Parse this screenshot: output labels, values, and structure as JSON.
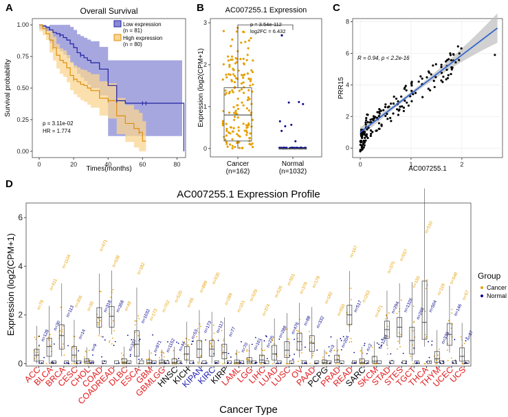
{
  "colors": {
    "cancer": "#E69F00",
    "normal": "#00008B",
    "low": "#1F1FA0",
    "low_band": "#8A8AD6",
    "high": "#E08E0B",
    "high_band": "#F9D592",
    "red_label": "#E31A1C",
    "blue_label": "#1F1FB4",
    "regline": "#3366CC"
  },
  "chart_data": [
    {
      "panel": "A",
      "type": "line",
      "title": "Overall Survival",
      "xlabel": "Times(months)",
      "ylabel": "Survival probability",
      "xlim": [
        -4,
        85
      ],
      "ylim": [
        -0.05,
        1.05
      ],
      "x_ticks": [
        0,
        20,
        40,
        60,
        80
      ],
      "y_ticks": [
        "0.00",
        "0.25",
        "0.50",
        "0.75",
        "1.00"
      ],
      "legend": [
        "Low expression",
        "(n = 81)",
        "High expression",
        "(n = 80)"
      ],
      "annotation": [
        "p = 3.11e-02",
        "HR = 1.774"
      ],
      "series": [
        {
          "name": "Low expression",
          "x": [
            0,
            2,
            4,
            6,
            8,
            10,
            12,
            14,
            16,
            18,
            20,
            22,
            24,
            26,
            28,
            30,
            35,
            40,
            45,
            50,
            55,
            60,
            62,
            83,
            84
          ],
          "y": [
            1.0,
            0.99,
            0.98,
            0.96,
            0.94,
            0.93,
            0.92,
            0.9,
            0.88,
            0.85,
            0.82,
            0.78,
            0.76,
            0.74,
            0.72,
            0.7,
            0.65,
            0.52,
            0.4,
            0.38,
            0.38,
            0.38,
            0.38,
            0.38,
            0.0
          ]
        },
        {
          "name": "High expression",
          "x": [
            0,
            2,
            4,
            6,
            8,
            10,
            12,
            14,
            16,
            18,
            20,
            22,
            24,
            26,
            28,
            30,
            35,
            40,
            45,
            50,
            55,
            58,
            60,
            62
          ],
          "y": [
            1.0,
            0.97,
            0.93,
            0.88,
            0.82,
            0.76,
            0.72,
            0.7,
            0.66,
            0.6,
            0.57,
            0.55,
            0.53,
            0.52,
            0.5,
            0.48,
            0.42,
            0.4,
            0.28,
            0.22,
            0.18,
            0.15,
            0.08,
            0.08
          ]
        }
      ]
    },
    {
      "panel": "B",
      "type": "box",
      "title": "AC007255.1 Expression",
      "ylabel": "Expression (log2(CPM+1)",
      "ylim": [
        -0.2,
        3.1
      ],
      "y_ticks": [
        0,
        1,
        2,
        3
      ],
      "categories": [
        "Cancer",
        "Normal"
      ],
      "category_counts": [
        "(n=162)",
        "(n=1032)"
      ],
      "annotation": [
        "p = 3.54e-112",
        "log2FC = 6.432"
      ],
      "boxes": [
        {
          "name": "Cancer",
          "q1": 0.18,
          "median": 0.8,
          "q3": 1.45,
          "whisker_low": 0.0,
          "whisker_high": 2.9
        },
        {
          "name": "Normal",
          "q1": 0.0,
          "median": 0.0,
          "q3": 0.0,
          "whisker_low": 0.0,
          "whisker_high": 0.0
        }
      ]
    },
    {
      "panel": "C",
      "type": "scatter",
      "xlabel": "AC007255.1",
      "ylabel": "PRR15",
      "xlim": [
        -0.15,
        2.8
      ],
      "ylim": [
        -0.6,
        8.2
      ],
      "x_ticks": [
        0,
        1,
        2
      ],
      "y_ticks": [
        0,
        2,
        4,
        6,
        8
      ],
      "annotation": "R = 0.94, p < 2.2e-16",
      "regression": {
        "x0": 0,
        "y0": 1.0,
        "x1": 2.7,
        "y1": 7.6
      }
    },
    {
      "panel": "D",
      "type": "box",
      "title": "AC007255.1 Expression Profile",
      "xlabel": "Cancer Type",
      "ylabel": "Expression (log2(CPM+1)",
      "ylim": [
        -0.1,
        6.6
      ],
      "y_ticks": [
        0,
        2,
        4,
        6
      ],
      "legend_title": "Group",
      "legend": [
        "Cancer",
        "Normal"
      ],
      "categories": [
        "ACC",
        "BLCA",
        "BRCA",
        "CESC",
        "CHOL",
        "COAD",
        "COADREAD",
        "DLBC",
        "ESCA",
        "GBM",
        "GBMLGG",
        "HNSC",
        "KICH",
        "KIPAN",
        "KIRC",
        "KIRP",
        "LAML",
        "LGG",
        "LIHC",
        "LUAD",
        "LUSC",
        "OV",
        "PAAD",
        "PCPG",
        "PRAD",
        "READ",
        "SARC",
        "SKCM",
        "STAD",
        "STES",
        "TGCT",
        "THCA",
        "THYM",
        "UCEC",
        "UCS"
      ],
      "category_colors": [
        "red",
        "red",
        "red",
        "red",
        "red",
        "red",
        "red",
        "red",
        "red",
        "red",
        "red",
        "black",
        "black",
        "blue",
        "blue",
        "black",
        "red",
        "red",
        "red",
        "red",
        "red",
        "red",
        "red",
        "black",
        "red",
        "red",
        "black",
        "red",
        "red",
        "red",
        "red",
        "red",
        "red",
        "red",
        "red"
      ],
      "cancer_n": [
        "n=79",
        "n=411",
        "n=1104",
        "n=306",
        "n=36",
        "n=471",
        "n=638",
        "n=48",
        "n=182",
        "n=173",
        "n=702",
        "n=520",
        "n=66",
        "n=889",
        "n=535",
        "n=289",
        "n=151",
        "n=529",
        "n=374",
        "n=526",
        "n=501",
        "n=379",
        "n=178",
        "n=182",
        "n=550",
        "n=167",
        "n=263",
        "n=471",
        "n=375",
        "n=557",
        "n=156",
        "n=510",
        "n=119",
        "n=548",
        "n=57"
      ],
      "normal_n": [
        "n=128",
        "n=30",
        "n=113",
        "n=14",
        "n=9",
        "n=318",
        "n=358",
        "n=337",
        "n=1032",
        "n=971",
        "n=1152",
        "n=44",
        "n=53",
        "n=173",
        "n=117",
        "n=77",
        "n=70",
        "n=161",
        "n=225",
        "n=288",
        "n=476",
        "n=88",
        "n=332",
        "n=3",
        "n=204",
        "n=517",
        "n=2",
        "n=1204",
        "n=294",
        "n=1326",
        "n=268",
        "n=504",
        "n=339",
        "n=146",
        "n=87"
      ],
      "cancer_medians": [
        0.35,
        0.7,
        1.15,
        0.35,
        0.1,
        1.9,
        1.95,
        0.05,
        0.8,
        0.05,
        0.05,
        0.05,
        0.4,
        0.6,
        0.6,
        0.45,
        0.05,
        0.1,
        0.15,
        0.4,
        0.55,
        0.9,
        0.85,
        0.05,
        0.15,
        2.0,
        0.05,
        0.1,
        1.4,
        1.5,
        0.95,
        1.7,
        0.2,
        1.2,
        0.3
      ],
      "cancer_q1": [
        0.1,
        0.3,
        0.6,
        0.1,
        0.02,
        1.5,
        1.5,
        0.0,
        0.3,
        0.0,
        0.0,
        0.0,
        0.15,
        0.25,
        0.3,
        0.2,
        0.0,
        0.02,
        0.05,
        0.15,
        0.25,
        0.55,
        0.5,
        0.0,
        0.05,
        1.6,
        0.0,
        0.02,
        1.05,
        1.1,
        0.4,
        1.0,
        0.05,
        0.75,
        0.1
      ],
      "cancer_q3": [
        0.6,
        1.05,
        1.6,
        0.7,
        0.2,
        2.3,
        2.35,
        0.2,
        1.35,
        0.15,
        0.15,
        0.2,
        0.7,
        0.95,
        0.95,
        0.8,
        0.15,
        0.25,
        0.35,
        0.75,
        0.9,
        1.25,
        1.15,
        0.15,
        0.35,
        2.4,
        0.2,
        0.3,
        1.75,
        1.9,
        1.5,
        3.4,
        0.5,
        1.65,
        0.65
      ]
    }
  ],
  "panel_letters": [
    "A",
    "B",
    "C",
    "D"
  ]
}
